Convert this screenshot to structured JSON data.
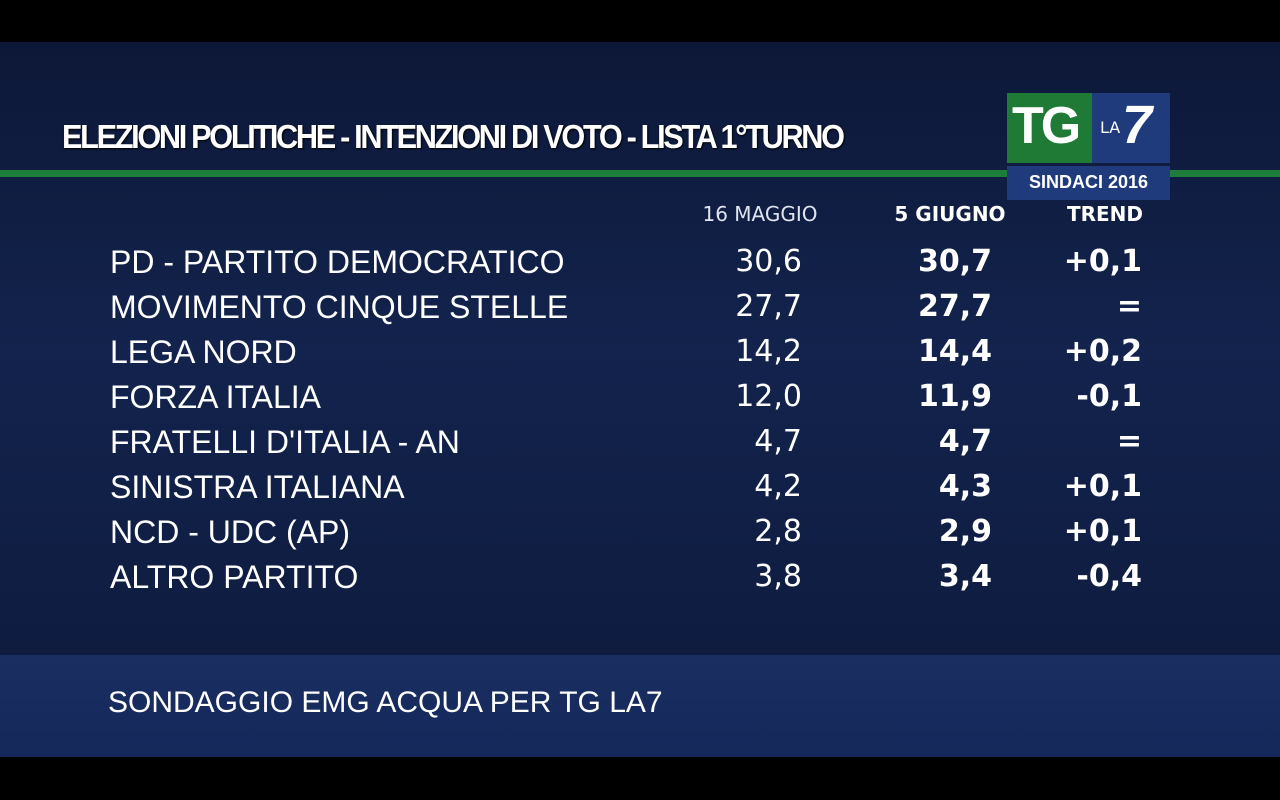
{
  "header": {
    "title": "ELEZIONI POLITICHE - INTENZIONI DI VOTO - LISTA 1°TURNO"
  },
  "logo": {
    "tg": "TG",
    "la": "LA",
    "seven": "7",
    "tag": "SINDACI 2016"
  },
  "table": {
    "columns": [
      "16 MAGGIO",
      "5 GIUGNO",
      "TREND"
    ],
    "rows": [
      [
        "PD - PARTITO DEMOCRATICO",
        "30,6",
        "30,7",
        "+0,1"
      ],
      [
        "MOVIMENTO CINQUE STELLE",
        "27,7",
        "27,7",
        "="
      ],
      [
        "LEGA NORD",
        "14,2",
        "14,4",
        "+0,2"
      ],
      [
        "FORZA ITALIA",
        "12,0",
        "11,9",
        "-0,1"
      ],
      [
        "FRATELLI D'ITALIA - AN",
        "4,7",
        "4,7",
        "="
      ],
      [
        "SINISTRA ITALIANA",
        "4,2",
        "4,3",
        "+0,1"
      ],
      [
        "NCD - UDC (AP)",
        "2,8",
        "2,9",
        "+0,1"
      ],
      [
        "ALTRO PARTITO",
        "3,8",
        "3,4",
        "-0,4"
      ]
    ]
  },
  "footer": {
    "source": "SONDAGGIO EMG ACQUA PER TG LA7"
  }
}
